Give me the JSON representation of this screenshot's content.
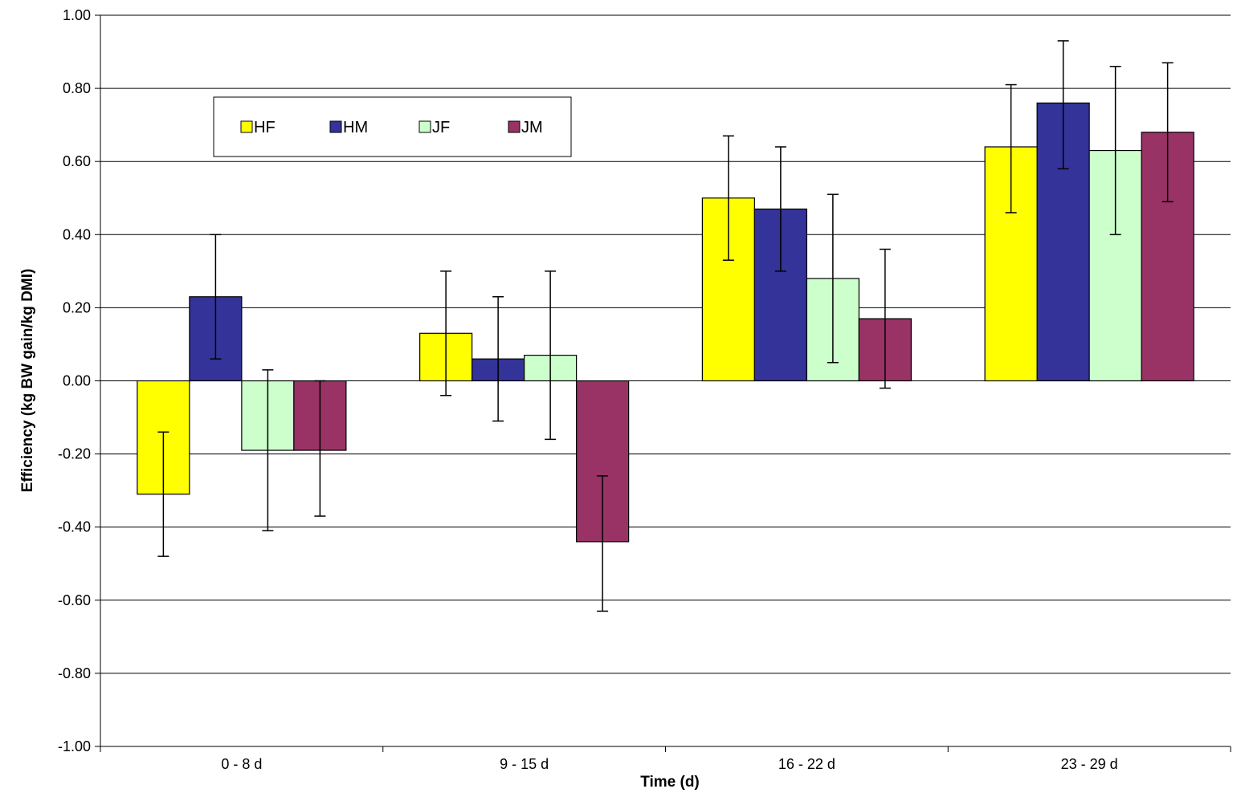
{
  "chart_data": {
    "type": "bar",
    "xlabel": "Time (d)",
    "ylabel": "Efficiency (kg BW gain/kg DMI)",
    "ylim": [
      -1.0,
      1.0
    ],
    "yticks": [
      "1.00",
      "0.80",
      "0.60",
      "0.40",
      "0.20",
      "0.00",
      "-0.20",
      "-0.40",
      "-0.60",
      "-0.80",
      "-1.00"
    ],
    "ytick_values": [
      1.0,
      0.8,
      0.6,
      0.4,
      0.2,
      0.0,
      -0.2,
      -0.4,
      -0.6,
      -0.8,
      -1.0
    ],
    "grid": "horizontal",
    "legend_position": "top-left",
    "categories": [
      "0 - 8 d",
      "9 - 15 d",
      "16 - 22 d",
      "23 - 29 d"
    ],
    "series": [
      {
        "name": "HF",
        "color": "#ffff00",
        "values": [
          -0.31,
          0.13,
          0.5,
          0.64
        ],
        "err_low": [
          -0.48,
          -0.04,
          0.33,
          0.46
        ],
        "err_high": [
          -0.14,
          0.3,
          0.67,
          0.81
        ]
      },
      {
        "name": "HM",
        "color": "#333399",
        "values": [
          0.23,
          0.06,
          0.47,
          0.76
        ],
        "err_low": [
          0.06,
          -0.11,
          0.3,
          0.58
        ],
        "err_high": [
          0.4,
          0.23,
          0.64,
          0.93
        ]
      },
      {
        "name": "JF",
        "color": "#ccffcc",
        "values": [
          -0.19,
          0.07,
          0.28,
          0.63
        ],
        "err_low": [
          -0.41,
          -0.16,
          0.05,
          0.4
        ],
        "err_high": [
          0.03,
          0.3,
          0.51,
          0.86
        ]
      },
      {
        "name": "JM",
        "color": "#993366",
        "values": [
          -0.19,
          -0.44,
          0.17,
          0.68
        ],
        "err_low": [
          -0.37,
          -0.63,
          -0.02,
          0.49
        ],
        "err_high": [
          0.0,
          -0.26,
          0.36,
          0.87
        ]
      }
    ]
  }
}
